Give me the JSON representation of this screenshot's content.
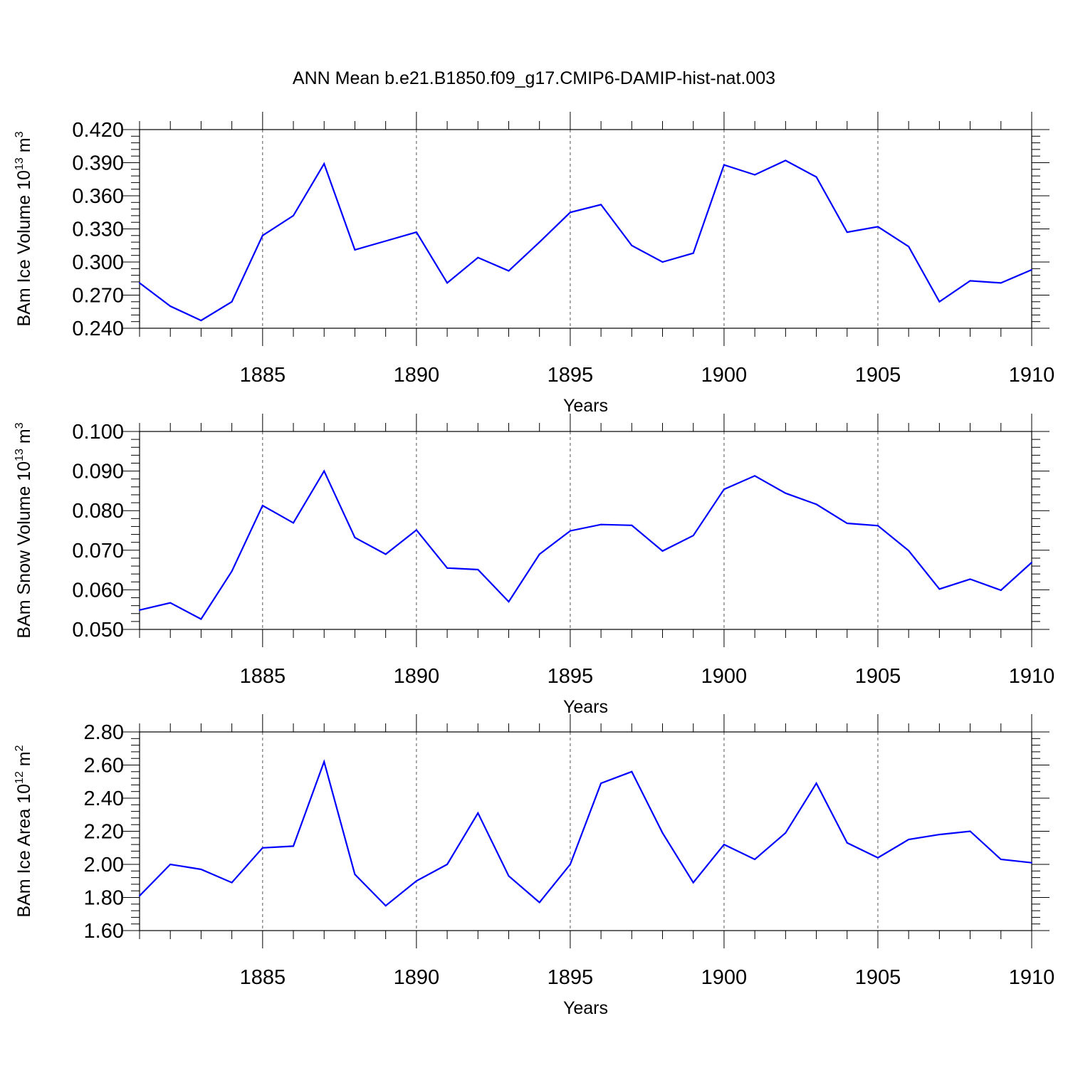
{
  "title": "ANN Mean b.e21.B1850.f09_g17.CMIP6-DAMIP-hist-nat.003",
  "line_color": "#0000ff",
  "grid_color": "#555555",
  "chart_data": [
    {
      "type": "line",
      "ylabel_main": "BAm Ice Volume 10",
      "ylabel_exp": "13",
      "ylabel_unit": " m",
      "ylabel_unit_exp": "3",
      "xlabel": "Years",
      "xlim": [
        1881,
        1910
      ],
      "ylim": [
        0.24,
        0.42
      ],
      "xticks": [
        "1885",
        "1890",
        "1895",
        "1900",
        "1905",
        "1910"
      ],
      "yticks": [
        "0.240",
        "0.270",
        "0.300",
        "0.330",
        "0.360",
        "0.390",
        "0.420"
      ],
      "grid": "vertical dashed at major x ticks",
      "x": [
        1881,
        1882,
        1883,
        1884,
        1885,
        1886,
        1887,
        1888,
        1889,
        1890,
        1891,
        1892,
        1893,
        1894,
        1895,
        1896,
        1897,
        1898,
        1899,
        1900,
        1901,
        1902,
        1903,
        1904,
        1905,
        1906,
        1907,
        1908,
        1909,
        1910
      ],
      "values": [
        0.281,
        0.26,
        0.247,
        0.264,
        0.324,
        0.342,
        0.389,
        0.311,
        0.319,
        0.327,
        0.281,
        0.304,
        0.292,
        0.318,
        0.345,
        0.352,
        0.315,
        0.3,
        0.308,
        0.388,
        0.379,
        0.392,
        0.377,
        0.327,
        0.332,
        0.314,
        0.264,
        0.283,
        0.281,
        0.293
      ]
    },
    {
      "type": "line",
      "ylabel_main": "BAm Snow Volume 10",
      "ylabel_exp": "13",
      "ylabel_unit": " m",
      "ylabel_unit_exp": "3",
      "xlabel": "Years",
      "xlim": [
        1881,
        1910
      ],
      "ylim": [
        0.05,
        0.1
      ],
      "xticks": [
        "1885",
        "1890",
        "1895",
        "1900",
        "1905",
        "1910"
      ],
      "yticks": [
        "0.050",
        "0.060",
        "0.070",
        "0.080",
        "0.090",
        "0.100"
      ],
      "grid": "vertical dashed at major x ticks",
      "x": [
        1881,
        1882,
        1883,
        1884,
        1885,
        1886,
        1887,
        1888,
        1889,
        1890,
        1891,
        1892,
        1893,
        1894,
        1895,
        1896,
        1897,
        1898,
        1899,
        1900,
        1901,
        1902,
        1903,
        1904,
        1905,
        1906,
        1907,
        1908,
        1909,
        1910
      ],
      "values": [
        0.0549,
        0.0567,
        0.0526,
        0.0647,
        0.0813,
        0.0769,
        0.09,
        0.0732,
        0.069,
        0.0751,
        0.0655,
        0.0651,
        0.057,
        0.069,
        0.0749,
        0.0765,
        0.0763,
        0.0698,
        0.0737,
        0.0854,
        0.0888,
        0.0844,
        0.0816,
        0.0768,
        0.0762,
        0.0699,
        0.0602,
        0.0627,
        0.0599,
        0.0669
      ]
    },
    {
      "type": "line",
      "ylabel_main": "BAm Ice Area 10",
      "ylabel_exp": "12",
      "ylabel_unit": " m",
      "ylabel_unit_exp": "2",
      "xlabel": "Years",
      "xlim": [
        1881,
        1910
      ],
      "ylim": [
        1.6,
        2.8
      ],
      "xticks": [
        "1885",
        "1890",
        "1895",
        "1900",
        "1905",
        "1910"
      ],
      "yticks": [
        "1.60",
        "1.80",
        "2.00",
        "2.20",
        "2.40",
        "2.60",
        "2.80"
      ],
      "grid": "vertical dashed at major x ticks",
      "x": [
        1881,
        1882,
        1883,
        1884,
        1885,
        1886,
        1887,
        1888,
        1889,
        1890,
        1891,
        1892,
        1893,
        1894,
        1895,
        1896,
        1897,
        1898,
        1899,
        1900,
        1901,
        1902,
        1903,
        1904,
        1905,
        1906,
        1907,
        1908,
        1909,
        1910
      ],
      "values": [
        1.81,
        2.0,
        1.97,
        1.89,
        2.1,
        2.11,
        2.62,
        1.94,
        1.75,
        1.9,
        2.0,
        2.31,
        1.93,
        1.77,
        2.0,
        2.49,
        2.56,
        2.19,
        1.89,
        2.12,
        2.03,
        2.19,
        2.49,
        2.13,
        2.04,
        2.15,
        2.18,
        2.2,
        2.03,
        2.01
      ]
    }
  ]
}
